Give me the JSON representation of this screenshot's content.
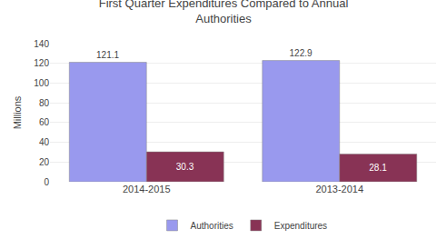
{
  "chart_data": {
    "type": "bar",
    "title": "First Quarter Expenditures Compared to Annual\nAuthorities",
    "categories": [
      "2014-2015",
      "2013-2014"
    ],
    "series": [
      {
        "name": "Authorities",
        "color": "#9999ee",
        "values": [
          121.1,
          122.9
        ]
      },
      {
        "name": "Expenditures",
        "color": "#883355",
        "values": [
          30.3,
          28.1
        ]
      }
    ],
    "ylabel": "Millions",
    "ylim": [
      0,
      140
    ],
    "yticks": [
      0,
      20,
      40,
      60,
      80,
      100,
      120,
      140
    ],
    "grid": true,
    "legend": "bottom",
    "data_labels": true
  }
}
